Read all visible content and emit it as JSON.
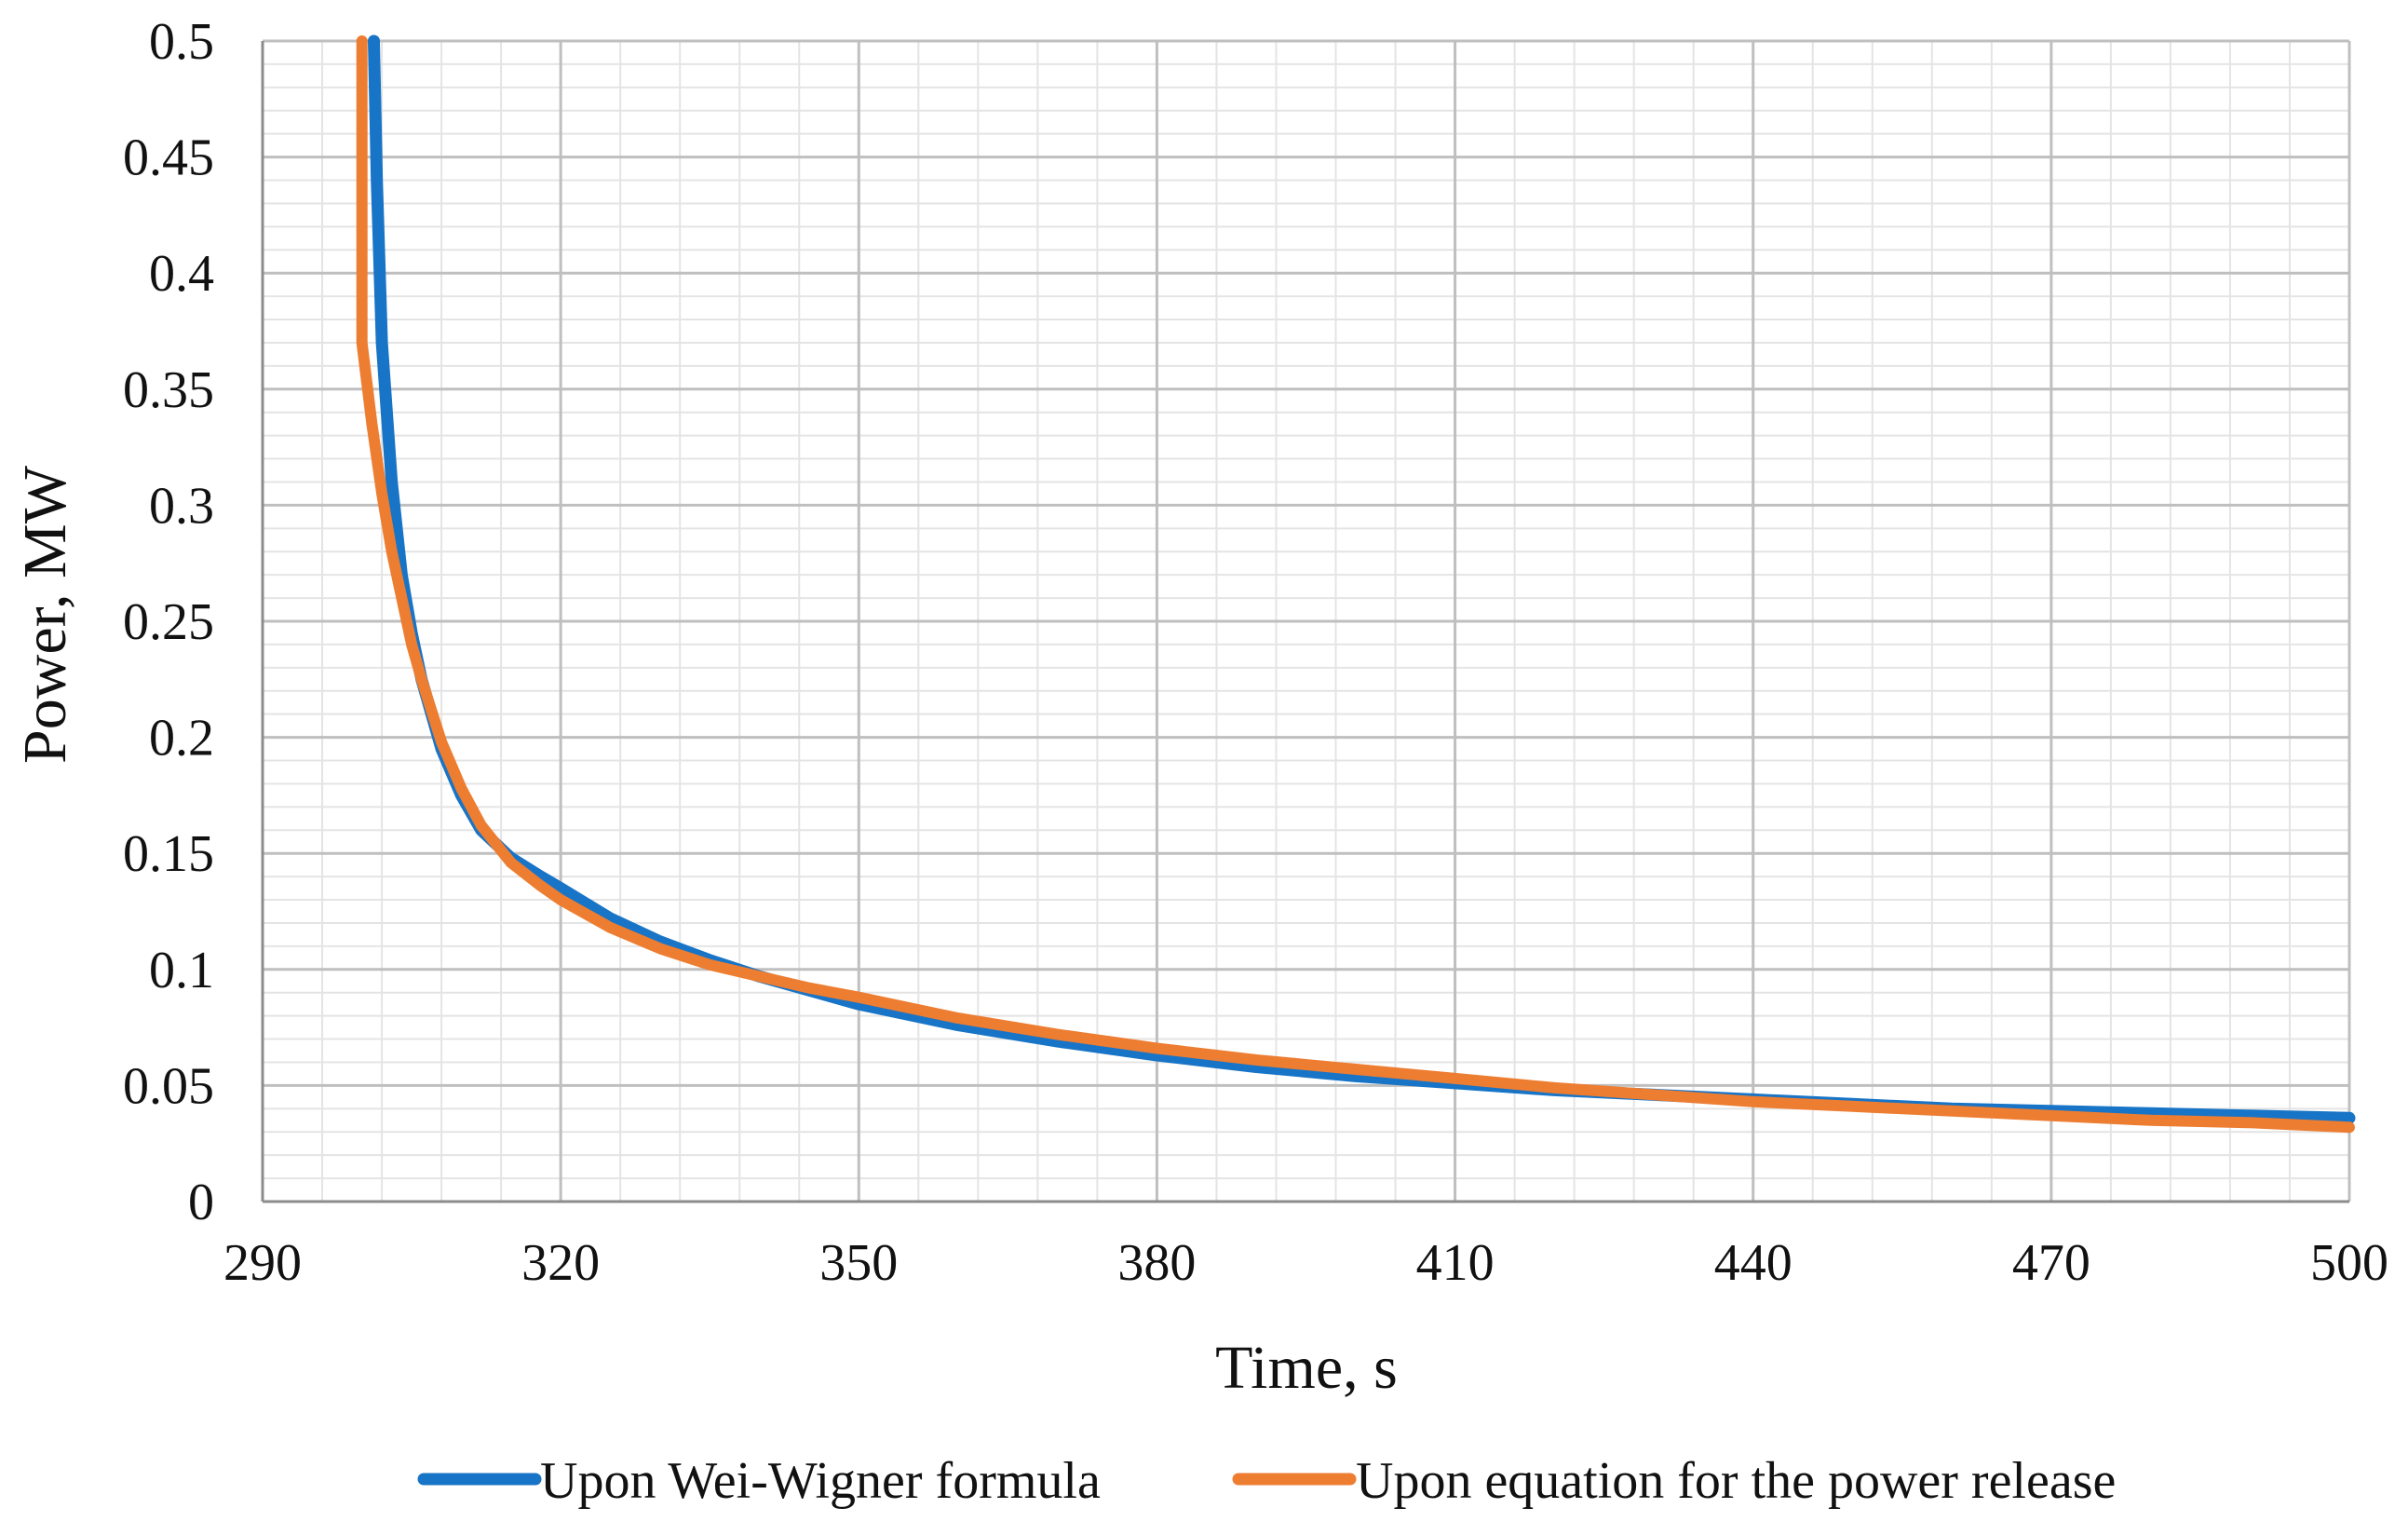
{
  "chart_data": {
    "type": "line",
    "xlabel": "Time, s",
    "ylabel": "Power, MW",
    "xlim": [
      290,
      500
    ],
    "ylim": [
      0,
      0.5
    ],
    "x_ticks": [
      "290",
      "320",
      "350",
      "380",
      "410",
      "440",
      "470",
      "500"
    ],
    "y_ticks": [
      "0",
      "0.05",
      "0.1",
      "0.15",
      "0.2",
      "0.25",
      "0.3",
      "0.35",
      "0.4",
      "0.45",
      "0.5"
    ],
    "grid": {
      "major": true,
      "minor": true
    },
    "legend_position": "bottom",
    "colors": {
      "wei_wigner": "#1874c6",
      "power_release": "#ed7d31",
      "major_grid": "#bfbfbf",
      "minor_grid": "#e4e4e4"
    },
    "series": [
      {
        "name": "Upon Wei-Wigner formula",
        "color": "#1874c6",
        "x": [
          301.2,
          301.5,
          302,
          303,
          304,
          305,
          306,
          308,
          310,
          312,
          315,
          318,
          320,
          325,
          330,
          335,
          340,
          345,
          350,
          360,
          370,
          380,
          390,
          400,
          410,
          420,
          430,
          440,
          450,
          460,
          470,
          480,
          490,
          500
        ],
        "y": [
          0.5,
          0.44,
          0.37,
          0.31,
          0.27,
          0.245,
          0.225,
          0.195,
          0.175,
          0.16,
          0.148,
          0.14,
          0.135,
          0.122,
          0.112,
          0.104,
          0.097,
          0.091,
          0.085,
          0.076,
          0.069,
          0.063,
          0.058,
          0.054,
          0.051,
          0.048,
          0.046,
          0.044,
          0.042,
          0.04,
          0.039,
          0.038,
          0.037,
          0.036
        ]
      },
      {
        "name": "Upon equation for the power release",
        "color": "#ed7d31",
        "x": [
          300,
          300,
          300,
          301,
          302,
          303,
          304,
          305,
          306,
          308,
          310,
          312,
          315,
          318,
          320,
          325,
          330,
          335,
          340,
          345,
          350,
          360,
          370,
          380,
          390,
          400,
          410,
          420,
          430,
          440,
          450,
          460,
          470,
          480,
          490,
          500
        ],
        "y": [
          0.5,
          0.42,
          0.37,
          0.335,
          0.305,
          0.28,
          0.26,
          0.24,
          0.225,
          0.198,
          0.178,
          0.162,
          0.146,
          0.136,
          0.13,
          0.118,
          0.109,
          0.102,
          0.097,
          0.092,
          0.088,
          0.079,
          0.072,
          0.066,
          0.061,
          0.057,
          0.053,
          0.049,
          0.046,
          0.043,
          0.041,
          0.039,
          0.037,
          0.035,
          0.034,
          0.032
        ]
      }
    ]
  }
}
